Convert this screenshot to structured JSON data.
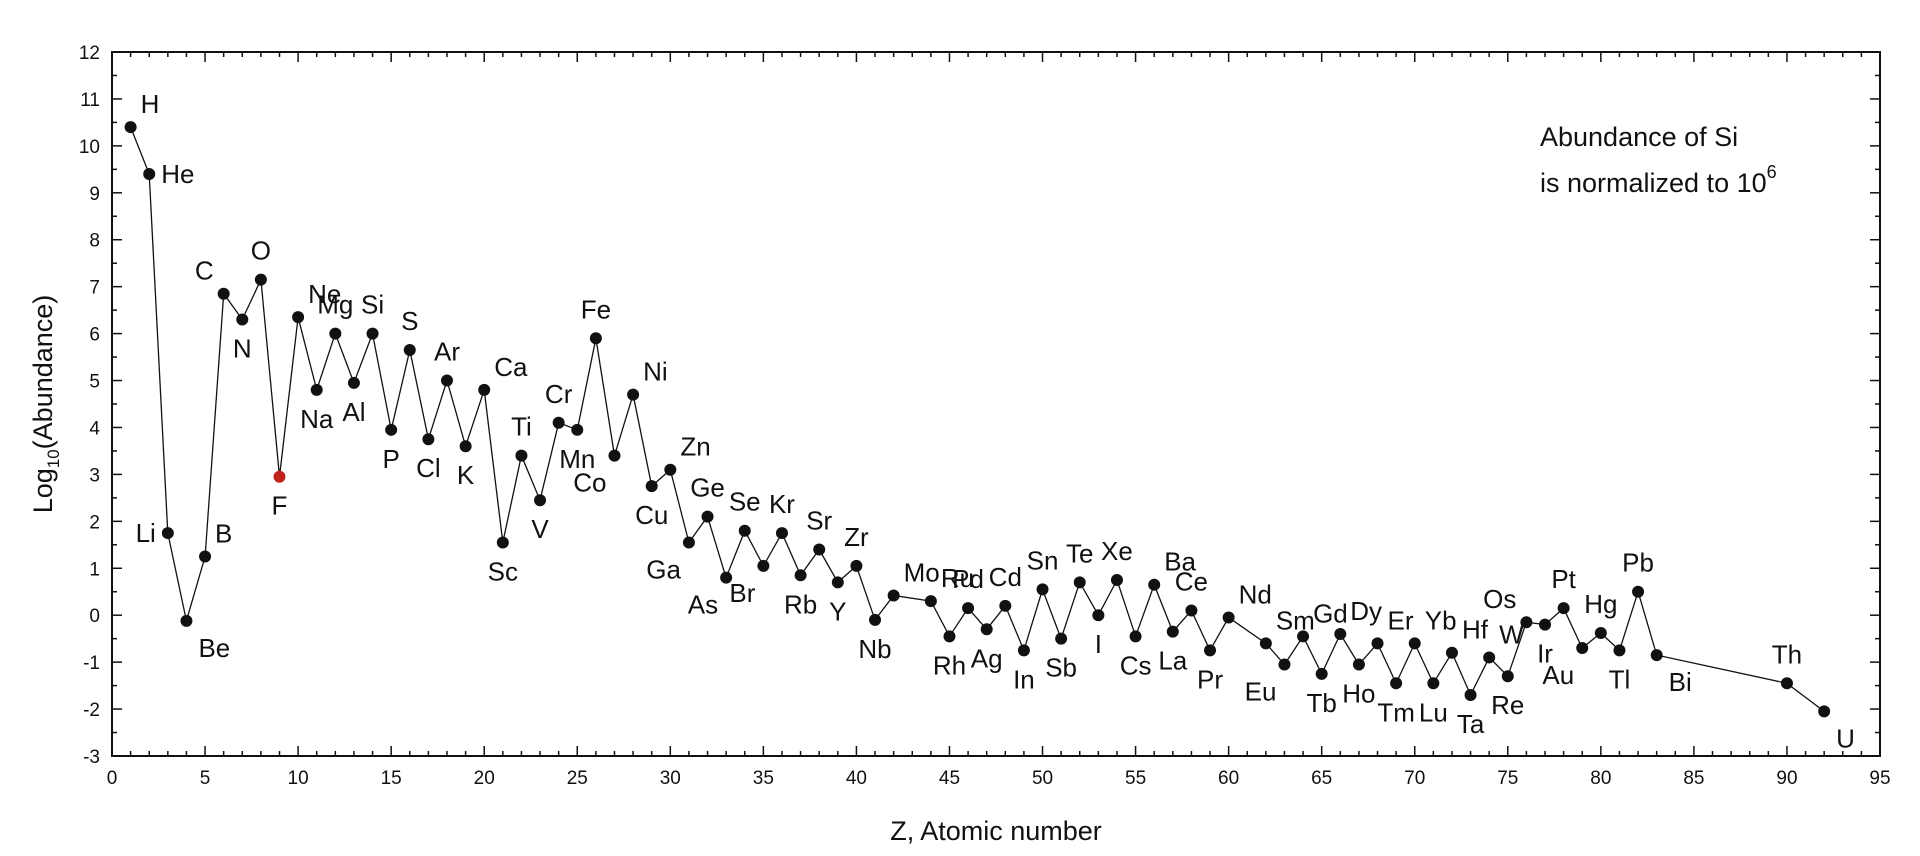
{
  "chart_data": {
    "type": "line",
    "xlabel": "Z, Atomic number",
    "ylabel_parts": {
      "pre": "Log",
      "sub": "10",
      "post": "(Abundance)"
    },
    "xlim": [
      0,
      95
    ],
    "ylim": [
      -3,
      12
    ],
    "xticks": [
      0,
      5,
      10,
      15,
      20,
      25,
      30,
      35,
      40,
      45,
      50,
      55,
      60,
      65,
      70,
      75,
      80,
      85,
      90,
      95
    ],
    "yticks": [
      -3,
      -2,
      -1,
      0,
      1,
      2,
      3,
      4,
      5,
      6,
      7,
      8,
      9,
      10,
      11,
      12
    ],
    "annotation": {
      "line1": "Abundance of Si",
      "line2": "is normalized to 10",
      "sup": "6"
    },
    "line_color": "#111111",
    "point_color": "#111111",
    "highlight_color": "#c0241c",
    "series": [
      {
        "points": [
          {
            "z": 1,
            "y": 10.4,
            "el": "H",
            "pos": "ur"
          },
          {
            "z": 2,
            "y": 9.4,
            "el": "He",
            "pos": "r"
          },
          {
            "z": 3,
            "y": 1.75,
            "el": "Li",
            "pos": "l"
          },
          {
            "z": 4,
            "y": -0.12,
            "el": "Be",
            "pos": "dr"
          },
          {
            "z": 5,
            "y": 1.25,
            "el": "B",
            "pos": "ur"
          },
          {
            "z": 6,
            "y": 6.85,
            "el": "C",
            "pos": "ul"
          },
          {
            "z": 7,
            "y": 6.3,
            "el": "N",
            "pos": "d"
          },
          {
            "z": 8,
            "y": 7.15,
            "el": "O",
            "pos": "u"
          },
          {
            "z": 9,
            "y": 2.95,
            "el": "F",
            "pos": "d",
            "highlight": true
          },
          {
            "z": 10,
            "y": 6.35,
            "el": "Ne",
            "pos": "ur"
          },
          {
            "z": 11,
            "y": 4.8,
            "el": "Na",
            "pos": "d"
          },
          {
            "z": 12,
            "y": 6.0,
            "el": "Mg",
            "pos": "u"
          },
          {
            "z": 13,
            "y": 4.95,
            "el": "Al",
            "pos": "d"
          },
          {
            "z": 14,
            "y": 6.0,
            "el": "Si",
            "pos": "u"
          },
          {
            "z": 15,
            "y": 3.95,
            "el": "P",
            "pos": "d"
          },
          {
            "z": 16,
            "y": 5.65,
            "el": "S",
            "pos": "u"
          },
          {
            "z": 17,
            "y": 3.75,
            "el": "Cl",
            "pos": "d"
          },
          {
            "z": 18,
            "y": 5.0,
            "el": "Ar",
            "pos": "u"
          },
          {
            "z": 19,
            "y": 3.6,
            "el": "K",
            "pos": "d"
          },
          {
            "z": 20,
            "y": 4.8,
            "el": "Ca",
            "pos": "ur"
          },
          {
            "z": 21,
            "y": 1.55,
            "el": "Sc",
            "pos": "d"
          },
          {
            "z": 22,
            "y": 3.4,
            "el": "Ti",
            "pos": "u"
          },
          {
            "z": 23,
            "y": 2.45,
            "el": "V",
            "pos": "d"
          },
          {
            "z": 24,
            "y": 4.1,
            "el": "Cr",
            "pos": "u"
          },
          {
            "z": 25,
            "y": 3.95,
            "el": "Mn",
            "pos": "d"
          },
          {
            "z": 26,
            "y": 5.9,
            "el": "Fe",
            "pos": "u"
          },
          {
            "z": 27,
            "y": 3.4,
            "el": "Co",
            "pos": "dl"
          },
          {
            "z": 28,
            "y": 4.7,
            "el": "Ni",
            "pos": "ur"
          },
          {
            "z": 29,
            "y": 2.75,
            "el": "Cu",
            "pos": "d"
          },
          {
            "z": 30,
            "y": 3.1,
            "el": "Zn",
            "pos": "ur"
          },
          {
            "z": 31,
            "y": 1.55,
            "el": "Ga",
            "pos": "dl"
          },
          {
            "z": 32,
            "y": 2.1,
            "el": "Ge",
            "pos": "u"
          },
          {
            "z": 33,
            "y": 0.8,
            "el": "As",
            "pos": "dl"
          },
          {
            "z": 34,
            "y": 1.8,
            "el": "Se",
            "pos": "u"
          },
          {
            "z": 35,
            "y": 1.05,
            "el": "Br",
            "pos": "dl"
          },
          {
            "z": 36,
            "y": 1.75,
            "el": "Kr",
            "pos": "u"
          },
          {
            "z": 37,
            "y": 0.85,
            "el": "Rb",
            "pos": "d"
          },
          {
            "z": 38,
            "y": 1.4,
            "el": "Sr",
            "pos": "u"
          },
          {
            "z": 39,
            "y": 0.7,
            "el": "Y",
            "pos": "d"
          },
          {
            "z": 40,
            "y": 1.05,
            "el": "Zr",
            "pos": "u"
          },
          {
            "z": 41,
            "y": -0.1,
            "el": "Nb",
            "pos": "d"
          },
          {
            "z": 42,
            "y": 0.42,
            "el": "Mo",
            "pos": "ur"
          },
          {
            "z": 44,
            "y": 0.3,
            "el": "Ru",
            "pos": "ur"
          },
          {
            "z": 45,
            "y": -0.45,
            "el": "Rh",
            "pos": "d"
          },
          {
            "z": 46,
            "y": 0.15,
            "el": "Pd",
            "pos": "u"
          },
          {
            "z": 47,
            "y": -0.3,
            "el": "Ag",
            "pos": "d"
          },
          {
            "z": 48,
            "y": 0.2,
            "el": "Cd",
            "pos": "u"
          },
          {
            "z": 49,
            "y": -0.75,
            "el": "In",
            "pos": "d"
          },
          {
            "z": 50,
            "y": 0.55,
            "el": "Sn",
            "pos": "u"
          },
          {
            "z": 51,
            "y": -0.5,
            "el": "Sb",
            "pos": "d"
          },
          {
            "z": 52,
            "y": 0.7,
            "el": "Te",
            "pos": "u"
          },
          {
            "z": 53,
            "y": 0.0,
            "el": "I",
            "pos": "d"
          },
          {
            "z": 54,
            "y": 0.75,
            "el": "Xe",
            "pos": "u"
          },
          {
            "z": 55,
            "y": -0.45,
            "el": "Cs",
            "pos": "d"
          },
          {
            "z": 56,
            "y": 0.65,
            "el": "Ba",
            "pos": "ur"
          },
          {
            "z": 57,
            "y": -0.35,
            "el": "La",
            "pos": "d"
          },
          {
            "z": 58,
            "y": 0.1,
            "el": "Ce",
            "pos": "u"
          },
          {
            "z": 59,
            "y": -0.75,
            "el": "Pr",
            "pos": "d"
          },
          {
            "z": 60,
            "y": -0.05,
            "el": "Nd",
            "pos": "ur"
          },
          {
            "z": 62,
            "y": -0.6,
            "el": "Sm",
            "pos": "ur"
          },
          {
            "z": 63,
            "y": -1.05,
            "el": "Eu",
            "pos": "dl"
          },
          {
            "z": 64,
            "y": -0.45,
            "el": "Gd",
            "pos": "ur"
          },
          {
            "z": 65,
            "y": -1.25,
            "el": "Tb",
            "pos": "d"
          },
          {
            "z": 66,
            "y": -0.4,
            "el": "Dy",
            "pos": "ur"
          },
          {
            "z": 67,
            "y": -1.05,
            "el": "Ho",
            "pos": "d"
          },
          {
            "z": 68,
            "y": -0.6,
            "el": "Er",
            "pos": "ur"
          },
          {
            "z": 69,
            "y": -1.45,
            "el": "Tm",
            "pos": "d"
          },
          {
            "z": 70,
            "y": -0.6,
            "el": "Yb",
            "pos": "ur"
          },
          {
            "z": 71,
            "y": -1.45,
            "el": "Lu",
            "pos": "d"
          },
          {
            "z": 72,
            "y": -0.8,
            "el": "Hf",
            "pos": "ur"
          },
          {
            "z": 73,
            "y": -1.7,
            "el": "Ta",
            "pos": "d"
          },
          {
            "z": 74,
            "y": -0.9,
            "el": "W",
            "pos": "ur"
          },
          {
            "z": 75,
            "y": -1.3,
            "el": "Re",
            "pos": "d"
          },
          {
            "z": 76,
            "y": -0.15,
            "el": "Os",
            "pos": "ul"
          },
          {
            "z": 77,
            "y": -0.2,
            "el": "Ir",
            "pos": "d"
          },
          {
            "z": 78,
            "y": 0.15,
            "el": "Pt",
            "pos": "u"
          },
          {
            "z": 79,
            "y": -0.7,
            "el": "Au",
            "pos": "dl"
          },
          {
            "z": 80,
            "y": -0.38,
            "el": "Hg",
            "pos": "u"
          },
          {
            "z": 81,
            "y": -0.75,
            "el": "Tl",
            "pos": "d"
          },
          {
            "z": 82,
            "y": 0.5,
            "el": "Pb",
            "pos": "u"
          },
          {
            "z": 83,
            "y": -0.85,
            "el": "Bi",
            "pos": "dr"
          },
          {
            "z": 90,
            "y": -1.45,
            "el": "Th",
            "pos": "u"
          },
          {
            "z": 92,
            "y": -2.05,
            "el": "U",
            "pos": "dr"
          }
        ]
      }
    ]
  }
}
